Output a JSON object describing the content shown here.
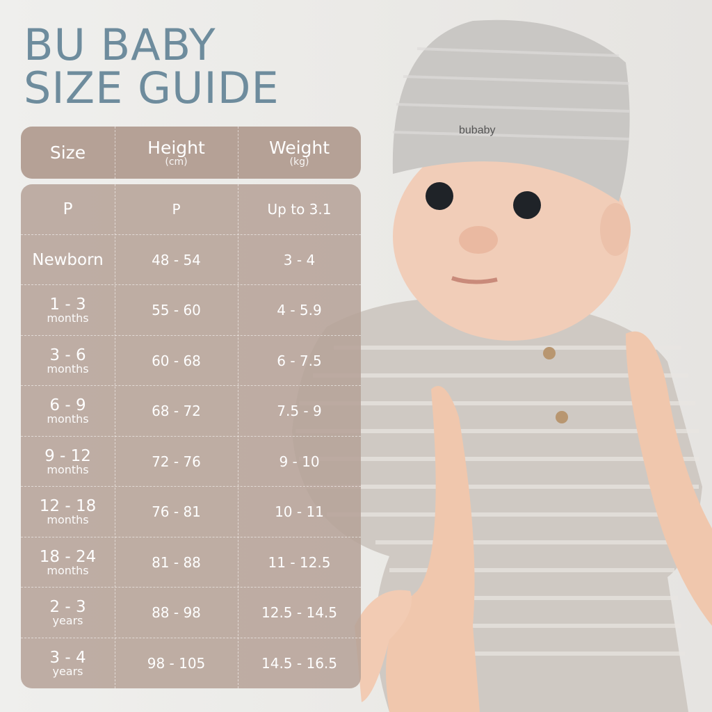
{
  "title": {
    "line1": "BU BABY",
    "line2": "SIZE GUIDE"
  },
  "brand": {
    "hat_logo": "bubaby"
  },
  "colors": {
    "title": "#6e8c9d",
    "table": "#b09b8f",
    "text": "#ffffff"
  },
  "table": {
    "headers": [
      {
        "label": "Size",
        "unit": ""
      },
      {
        "label": "Height",
        "unit": "(cm)"
      },
      {
        "label": "Weight",
        "unit": "(kg)"
      }
    ],
    "rows": [
      {
        "size": "P",
        "unit": "",
        "height": "P",
        "weight": "Up to 3.1"
      },
      {
        "size": "Newborn",
        "unit": "",
        "height": "48 - 54",
        "weight": "3 - 4"
      },
      {
        "size": "1 - 3",
        "unit": "months",
        "height": "55 - 60",
        "weight": "4 - 5.9"
      },
      {
        "size": "3 - 6",
        "unit": "months",
        "height": "60 - 68",
        "weight": "6 - 7.5"
      },
      {
        "size": "6 - 9",
        "unit": "months",
        "height": "68 - 72",
        "weight": "7.5 - 9"
      },
      {
        "size": "9 - 12",
        "unit": "months",
        "height": "72 - 76",
        "weight": "9 - 10"
      },
      {
        "size": "12 - 18",
        "unit": "months",
        "height": "76 - 81",
        "weight": "10 - 11"
      },
      {
        "size": "18 - 24",
        "unit": "months",
        "height": "81 - 88",
        "weight": "11 - 12.5"
      },
      {
        "size": "2 - 3",
        "unit": "years",
        "height": "88 - 98",
        "weight": "12.5 - 14.5"
      },
      {
        "size": "3 - 4",
        "unit": "years",
        "height": "98 - 105",
        "weight": "14.5 - 16.5"
      }
    ]
  }
}
